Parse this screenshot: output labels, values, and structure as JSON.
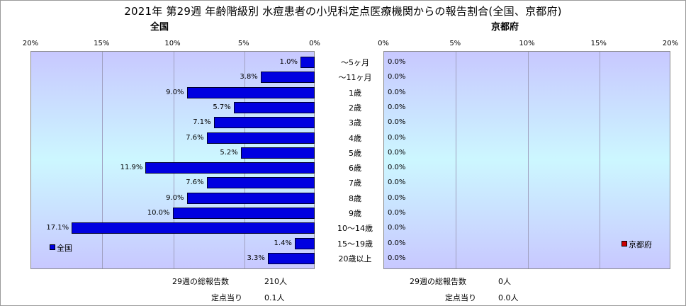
{
  "title": "2021年 第29週 年齢階級別 水痘患者の小児科定点医療機関からの報告割合(全国、京都府)",
  "chart_data": {
    "type": "bar",
    "orientation": "horizontal",
    "categories": [
      "～5ヶ月",
      "～11ヶ月",
      "1歳",
      "2歳",
      "3歳",
      "4歳",
      "5歳",
      "6歳",
      "7歳",
      "8歳",
      "9歳",
      "10～14歳",
      "15～19歳",
      "20歳以上"
    ],
    "xlim": [
      0,
      20
    ],
    "tick_labels": [
      "0%",
      "5%",
      "10%",
      "15%",
      "20%"
    ],
    "grid": true,
    "panels": [
      {
        "subtitle": "全国",
        "direction": "right-to-left",
        "legend": "全国",
        "legend_position": "bottom-left",
        "color": "#0000e0",
        "values": [
          1.0,
          3.8,
          9.0,
          5.7,
          7.1,
          7.6,
          5.2,
          11.9,
          7.6,
          9.0,
          10.0,
          17.1,
          1.4,
          3.3
        ],
        "value_labels": [
          "1.0%",
          "3.8%",
          "9.0%",
          "5.7%",
          "7.1%",
          "7.6%",
          "5.2%",
          "11.9%",
          "7.6%",
          "9.0%",
          "10.0%",
          "17.1%",
          "1.4%",
          "3.3%"
        ]
      },
      {
        "subtitle": "京都府",
        "direction": "left-to-right",
        "legend": "京都府",
        "legend_position": "bottom-right",
        "color": "#cc0000",
        "values": [
          0,
          0,
          0,
          0,
          0,
          0,
          0,
          0,
          0,
          0,
          0,
          0,
          0,
          0
        ],
        "value_labels": [
          "0.0%",
          "0.0%",
          "0.0%",
          "0.0%",
          "0.0%",
          "0.0%",
          "0.0%",
          "0.0%",
          "0.0%",
          "0.0%",
          "0.0%",
          "0.0%",
          "0.0%",
          "0.0%"
        ]
      }
    ]
  },
  "footer": {
    "national": {
      "total_label": "29週の総報告数",
      "total_value": "210人",
      "per_label": "定点当り",
      "per_value": "0.1人"
    },
    "kyoto": {
      "total_label": "29週の総報告数",
      "total_value": "0人",
      "per_label": "定点当り",
      "per_value": "0.0人"
    }
  }
}
